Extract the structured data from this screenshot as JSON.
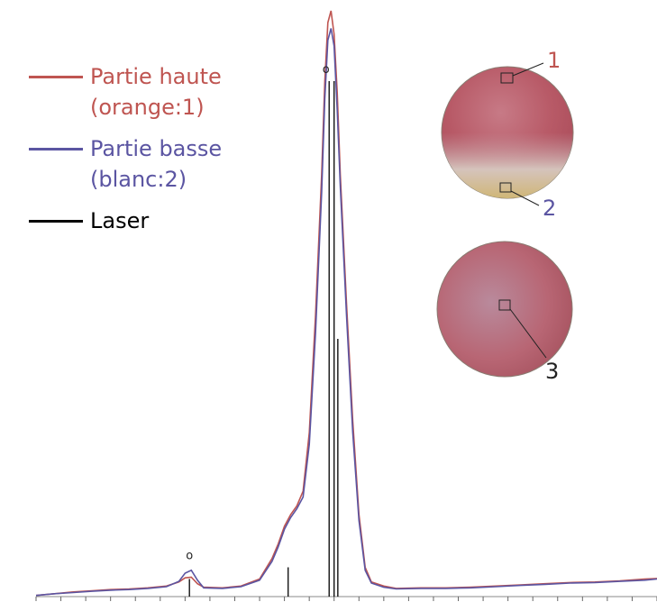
{
  "chart_data": {
    "type": "line",
    "xlim": [
      0,
      100
    ],
    "ylim": [
      0,
      100
    ],
    "xticks": [
      0,
      4,
      8,
      12,
      16,
      20,
      24,
      28,
      32,
      36,
      40,
      44,
      48,
      52,
      56,
      60,
      64,
      68,
      72,
      76,
      80,
      84,
      88,
      92,
      96,
      100
    ],
    "legend": "upper left",
    "series": [
      {
        "name": "Partie haute (orange:1)",
        "color": "#bf5551",
        "style": "line",
        "x": [
          0,
          3,
          6,
          9,
          12,
          15,
          18,
          21,
          23,
          24,
          25,
          26,
          27,
          30,
          33,
          36,
          38,
          39,
          40,
          41,
          42,
          43,
          44,
          45,
          46,
          46.5,
          47,
          47.5,
          48,
          48.5,
          49,
          50,
          51,
          52,
          53,
          54,
          56,
          58,
          62,
          66,
          70,
          74,
          78,
          82,
          86,
          90,
          94,
          98,
          100
        ],
        "values": [
          0.2,
          0.5,
          0.8,
          1,
          1.2,
          1.3,
          1.5,
          1.8,
          2.5,
          3.2,
          3.3,
          2.2,
          1.6,
          1.5,
          1.8,
          3,
          6.5,
          9,
          12,
          14,
          15.5,
          18,
          28,
          48,
          72,
          88,
          98,
          100,
          96,
          86,
          72,
          50,
          30,
          14,
          5,
          2.5,
          1.8,
          1.4,
          1.5,
          1.5,
          1.6,
          1.8,
          2,
          2.2,
          2.4,
          2.5,
          2.7,
          3,
          3.1
        ]
      },
      {
        "name": "Partie basse (blanc:2)",
        "color": "#5b55a2",
        "style": "line",
        "x": [
          0,
          3,
          6,
          9,
          12,
          15,
          18,
          21,
          23,
          24,
          25,
          26,
          27,
          30,
          33,
          36,
          38,
          39,
          40,
          41,
          42,
          43,
          44,
          45,
          46,
          46.5,
          47,
          47.5,
          48,
          48.5,
          49,
          50,
          51,
          52,
          53,
          54,
          56,
          58,
          62,
          66,
          70,
          74,
          78,
          82,
          86,
          90,
          94,
          98,
          100
        ],
        "values": [
          0.2,
          0.5,
          0.7,
          0.9,
          1.1,
          1.2,
          1.4,
          1.7,
          2.6,
          4,
          4.5,
          2.8,
          1.5,
          1.4,
          1.7,
          2.8,
          6,
          8.5,
          11.5,
          13.5,
          15,
          17,
          26,
          45,
          69,
          85,
          95,
          97,
          94,
          83,
          70,
          48,
          28,
          13,
          4.5,
          2.3,
          1.6,
          1.3,
          1.4,
          1.4,
          1.5,
          1.7,
          1.9,
          2.1,
          2.3,
          2.4,
          2.6,
          2.8,
          3
        ]
      },
      {
        "name": "Laser",
        "color": "#000000",
        "style": "stick",
        "x": [
          24.7,
          40.6,
          47.2,
          48.0,
          48.6
        ],
        "values": [
          3,
          5,
          88,
          88,
          44
        ]
      }
    ],
    "annotations": [
      {
        "text": "o",
        "x": 24.7,
        "y": 6
      },
      {
        "text": "o",
        "x": 46.7,
        "y": 89
      }
    ]
  },
  "insets": {
    "labels": [
      "1",
      "2",
      "3"
    ]
  }
}
